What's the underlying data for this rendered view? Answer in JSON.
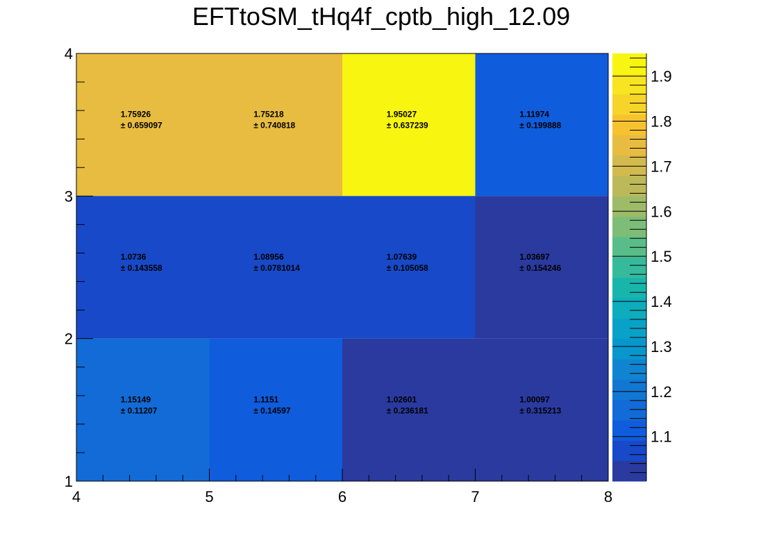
{
  "chart_data": {
    "type": "heatmap",
    "title": "EFTtoSM_tHq4f_cptb_high_12.09",
    "xlabel": "",
    "ylabel": "",
    "x_edges": [
      4,
      5,
      6,
      7,
      8
    ],
    "y_edges": [
      1,
      2,
      3,
      4
    ],
    "x_ticks": [
      "4",
      "5",
      "6",
      "7",
      "8"
    ],
    "y_ticks": [
      "1",
      "2",
      "3",
      "4"
    ],
    "zlim": [
      1.00097,
      1.95027
    ],
    "palette_ticks": [
      "1.1",
      "1.2",
      "1.3",
      "1.4",
      "1.5",
      "1.6",
      "1.7",
      "1.8",
      "1.9"
    ],
    "palette_tick_values": [
      1.1,
      1.2,
      1.3,
      1.4,
      1.5,
      1.6,
      1.7,
      1.8,
      1.9
    ],
    "colormap": "kBird",
    "cells": [
      {
        "x0": 4,
        "x1": 6,
        "y0": 3,
        "y1": 4,
        "values": [
          {
            "x": 4.5,
            "value": "1.75926",
            "error": "0.659097"
          },
          {
            "x": 5.5,
            "value": "1.75218",
            "error": "0.740818"
          }
        ],
        "z": 1.7557
      },
      {
        "x0": 6,
        "x1": 7,
        "y0": 3,
        "y1": 4,
        "values": [
          {
            "x": 6.5,
            "value": "1.95027",
            "error": "0.637239"
          }
        ],
        "z": 1.95027
      },
      {
        "x0": 7,
        "x1": 8,
        "y0": 3,
        "y1": 4,
        "values": [
          {
            "x": 7.5,
            "value": "1.11974",
            "error": "0.199888"
          }
        ],
        "z": 1.11974
      },
      {
        "x0": 4,
        "x1": 7,
        "y0": 2,
        "y1": 3,
        "values": [
          {
            "x": 4.5,
            "value": "1.0736",
            "error": "0.143558"
          },
          {
            "x": 5.5,
            "value": "1.08956",
            "error": "0.0781014"
          },
          {
            "x": 6.5,
            "value": "1.07639",
            "error": "0.105058"
          }
        ],
        "z": 1.0799
      },
      {
        "x0": 7,
        "x1": 8,
        "y0": 2,
        "y1": 3,
        "values": [
          {
            "x": 7.5,
            "value": "1.03697",
            "error": "0.154246"
          }
        ],
        "z": 1.03697
      },
      {
        "x0": 4,
        "x1": 5,
        "y0": 1,
        "y1": 2,
        "values": [
          {
            "x": 4.5,
            "value": "1.15149",
            "error": "0.11207"
          }
        ],
        "z": 1.15149
      },
      {
        "x0": 5,
        "x1": 6,
        "y0": 1,
        "y1": 2,
        "values": [
          {
            "x": 5.5,
            "value": "1.1151",
            "error": "0.14597"
          }
        ],
        "z": 1.1151
      },
      {
        "x0": 6,
        "x1": 8,
        "y0": 1,
        "y1": 2,
        "values": [
          {
            "x": 6.5,
            "value": "1.02601",
            "error": "0.236181"
          },
          {
            "x": 7.5,
            "value": "1.00097",
            "error": "0.315213"
          }
        ],
        "z": 1.0135
      }
    ],
    "palette_colors": [
      "#2a3a9f",
      "#1749c8",
      "#0f5cdc",
      "#126bd6",
      "#1277d3",
      "#0f85d2",
      "#0996cd",
      "#08a2c8",
      "#0dadbd",
      "#18b5ad",
      "#36ba9c",
      "#59bd89",
      "#7dbd78",
      "#9ebb69",
      "#bdb95a",
      "#d3ba4f",
      "#e7bc40",
      "#f7c230",
      "#f6d42a",
      "#f8e420",
      "#f8f510"
    ],
    "grid": false,
    "legend": "none"
  }
}
